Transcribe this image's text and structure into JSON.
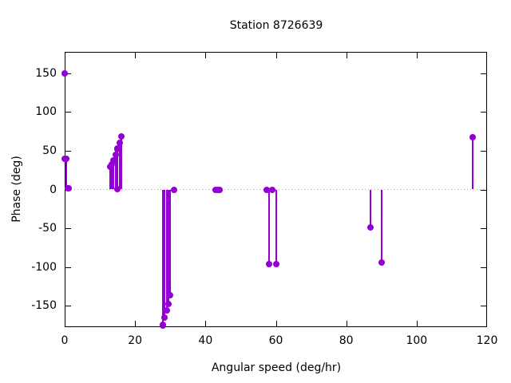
{
  "chart_data": {
    "type": "scatter",
    "style": "impulses+points",
    "title": "Station 8726639",
    "xlabel": "Angular speed (deg/hr)",
    "ylabel": "Phase (deg)",
    "xlim": [
      0,
      120
    ],
    "ylim": [
      -177.6,
      177.6
    ],
    "x_ticks": [
      0,
      20,
      40,
      60,
      80,
      100,
      120
    ],
    "y_ticks": [
      -150,
      -100,
      -50,
      0,
      50,
      100,
      150
    ],
    "grid": false,
    "zero_line_dotted": true,
    "legend": "none",
    "colors": {
      "series": "#9400d3",
      "axis": "#000000",
      "zero_line": "#a6a6a6",
      "background": "#ffffff"
    },
    "points": [
      {
        "x": 0.041,
        "y": 150
      },
      {
        "x": 0.082,
        "y": 40
      },
      {
        "x": 0.544,
        "y": 40
      },
      {
        "x": 1.016,
        "y": 2
      },
      {
        "x": 1.098,
        "y": 2
      },
      {
        "x": 12.854,
        "y": 29
      },
      {
        "x": 13.399,
        "y": 32
      },
      {
        "x": 13.943,
        "y": 38
      },
      {
        "x": 14.497,
        "y": 45
      },
      {
        "x": 14.959,
        "y": 52
      },
      {
        "x": 15.0,
        "y": 1
      },
      {
        "x": 15.041,
        "y": 53
      },
      {
        "x": 15.585,
        "y": 60
      },
      {
        "x": 16.139,
        "y": 68
      },
      {
        "x": 27.895,
        "y": -176
      },
      {
        "x": 27.968,
        "y": -175
      },
      {
        "x": 28.44,
        "y": -165
      },
      {
        "x": 28.984,
        "y": -156
      },
      {
        "x": 29.528,
        "y": -148
      },
      {
        "x": 30.0,
        "y": -136
      },
      {
        "x": 31.016,
        "y": 0
      },
      {
        "x": 42.927,
        "y": -1
      },
      {
        "x": 43.476,
        "y": -1
      },
      {
        "x": 44.025,
        "y": -1
      },
      {
        "x": 57.424,
        "y": 0
      },
      {
        "x": 57.968,
        "y": -96
      },
      {
        "x": 58.984,
        "y": 0
      },
      {
        "x": 60.0,
        "y": -96
      },
      {
        "x": 86.952,
        "y": -49
      },
      {
        "x": 90.0,
        "y": -94
      },
      {
        "x": 115.936,
        "y": 67
      }
    ]
  }
}
